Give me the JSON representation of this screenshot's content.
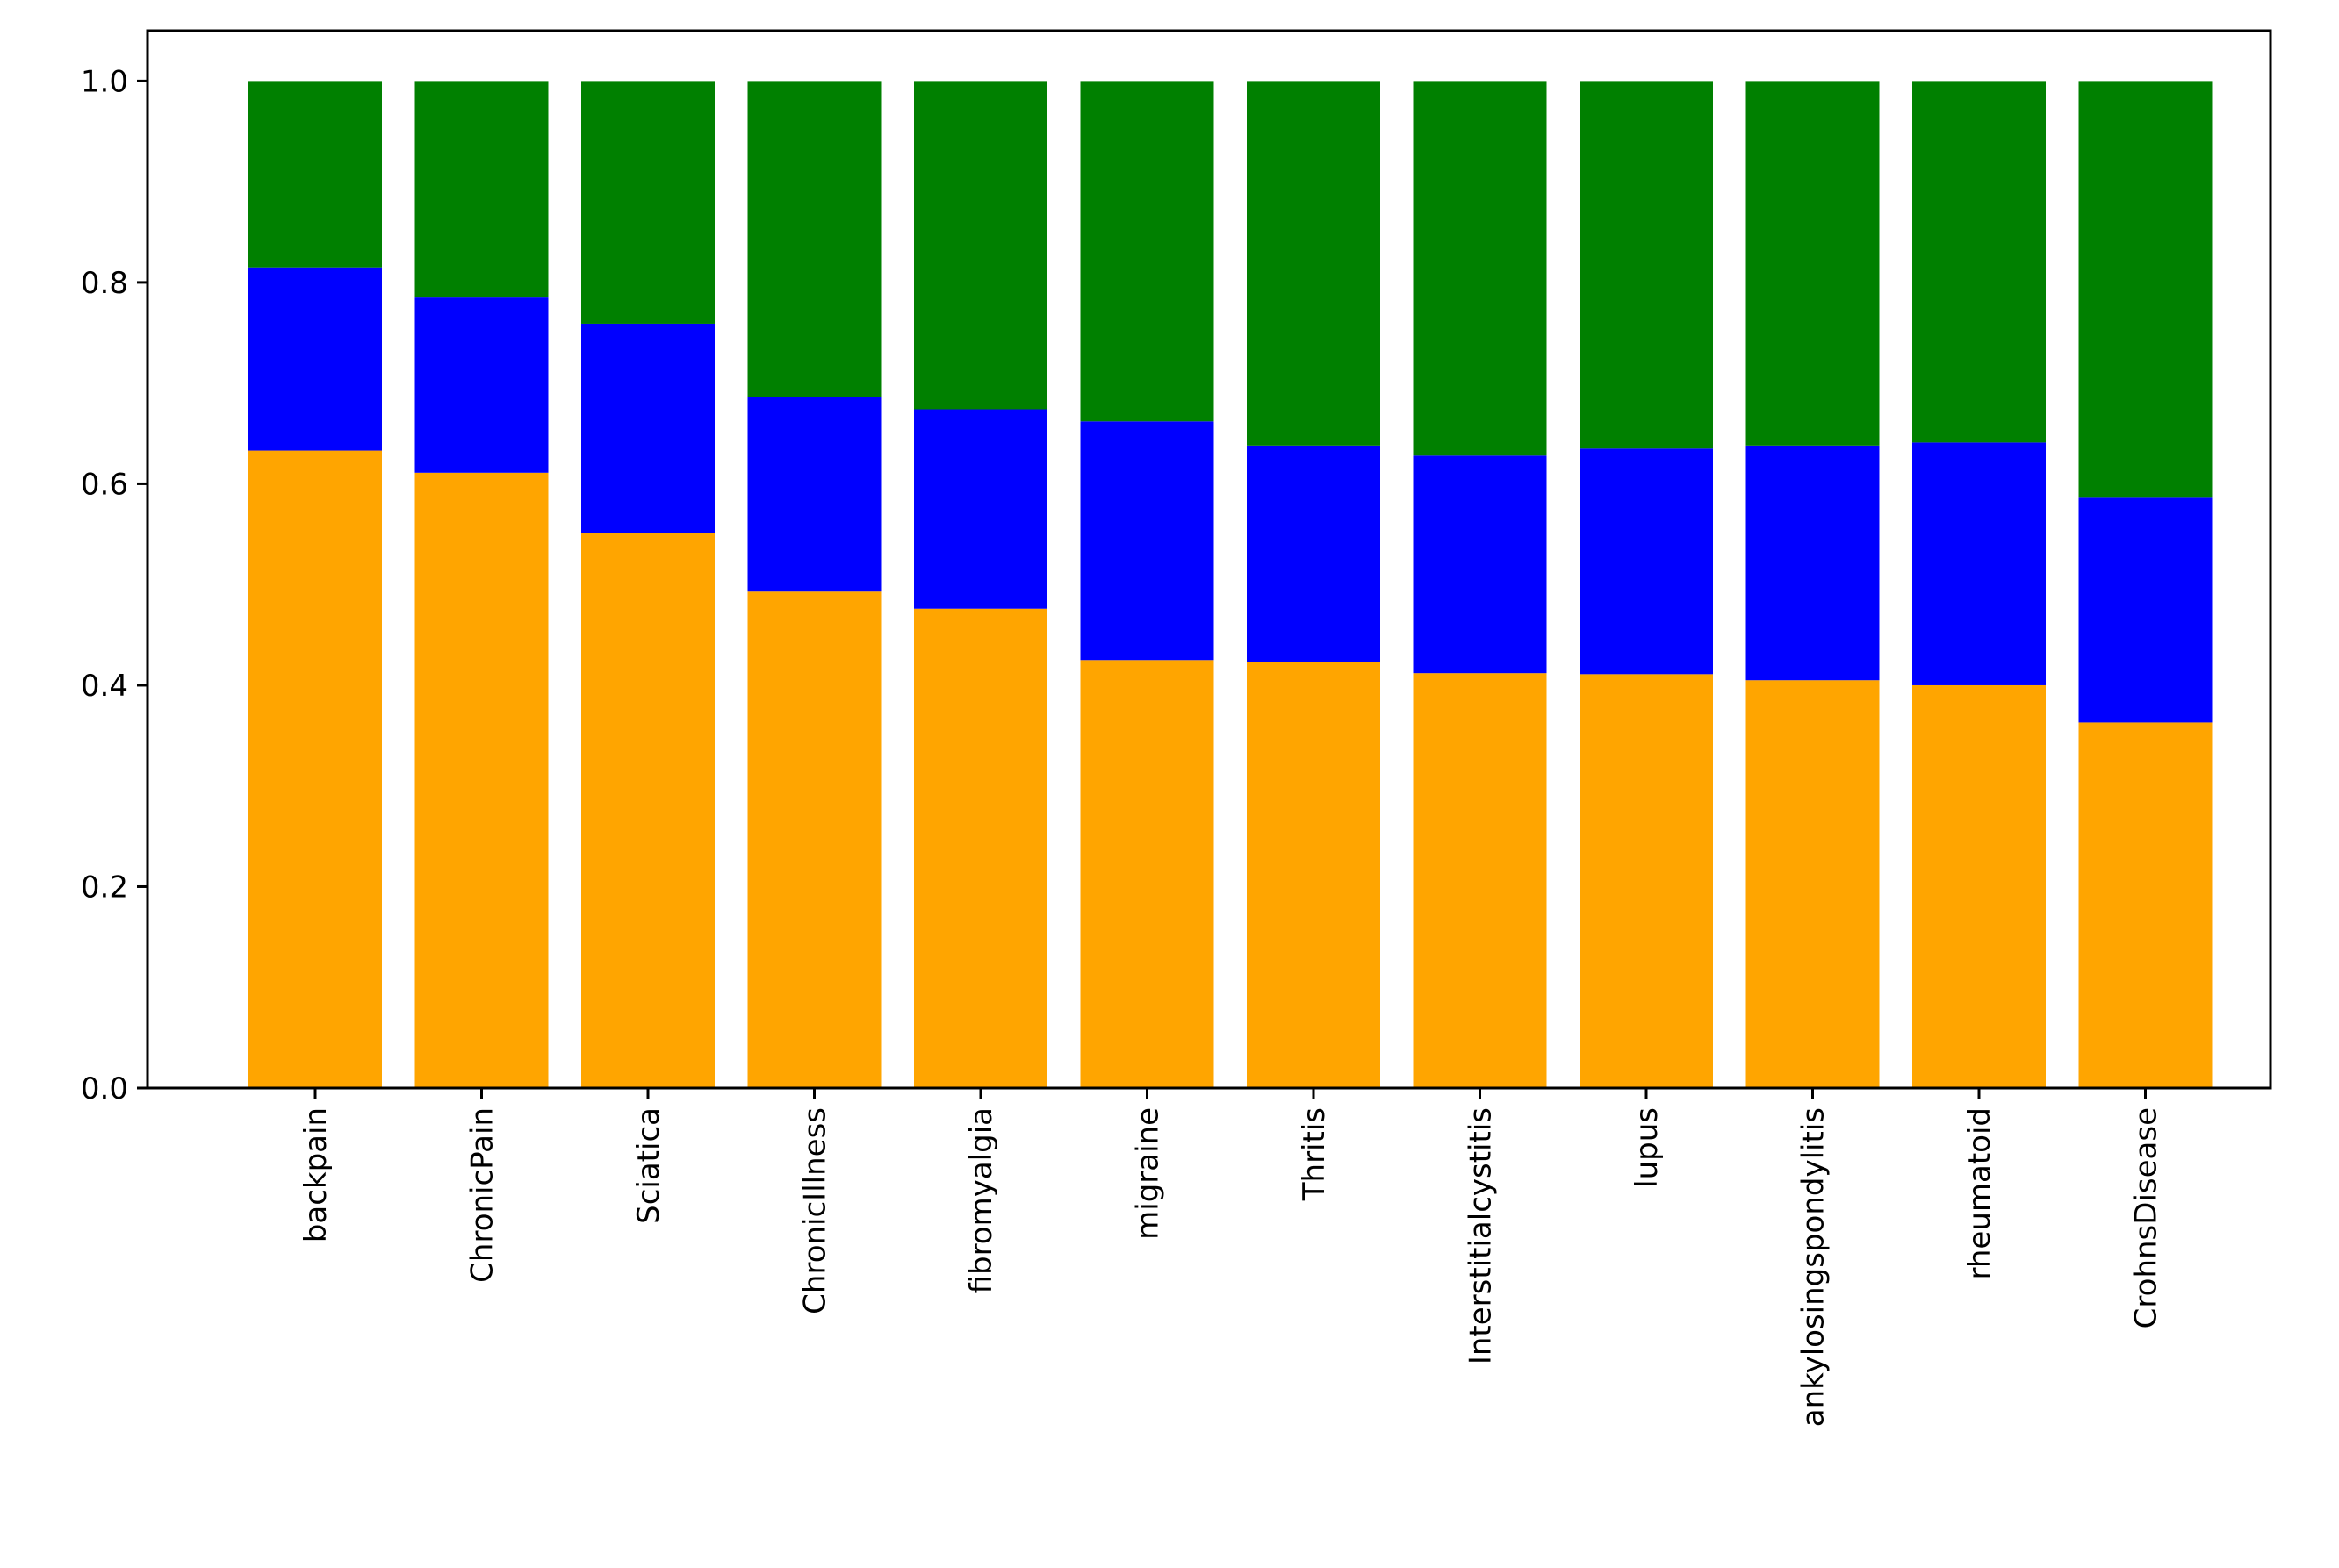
{
  "chart_data": {
    "type": "bar",
    "stacked": true,
    "categories": [
      "backpain",
      "ChronicPain",
      "Sciatica",
      "ChronicIllness",
      "fibromyalgia",
      "migraine",
      "Thritis",
      "Interstitialcystitis",
      "lupus",
      "ankylosingspondylitis",
      "rheumatoid",
      "CrohnsDisease"
    ],
    "series": [
      {
        "name": "orange",
        "color": "#ffa500",
        "values": [
          0.633,
          0.611,
          0.551,
          0.493,
          0.476,
          0.425,
          0.423,
          0.412,
          0.411,
          0.405,
          0.4,
          0.363
        ]
      },
      {
        "name": "blue",
        "color": "#0000ff",
        "values": [
          0.182,
          0.174,
          0.208,
          0.193,
          0.198,
          0.237,
          0.215,
          0.216,
          0.224,
          0.233,
          0.241,
          0.224
        ]
      },
      {
        "name": "green",
        "color": "#008000",
        "values": [
          0.185,
          0.215,
          0.241,
          0.314,
          0.326,
          0.338,
          0.362,
          0.372,
          0.365,
          0.362,
          0.359,
          0.413
        ]
      }
    ],
    "yticks": [
      "0.0",
      "0.2",
      "0.4",
      "0.6",
      "0.8",
      "1.0"
    ],
    "ylim": [
      0,
      1.05
    ],
    "title": "",
    "xlabel": "",
    "ylabel": "",
    "grid": false
  }
}
